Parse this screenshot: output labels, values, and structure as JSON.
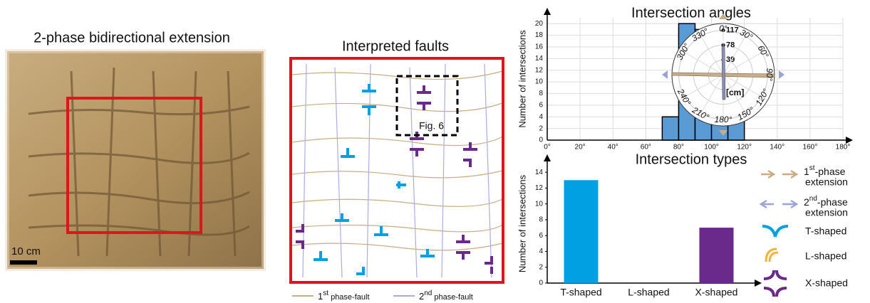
{
  "photo": {
    "title": "2-phase bidirectional extension",
    "scale": "10 cm"
  },
  "map": {
    "title": "Interpreted faults",
    "inset": "Fig. 6",
    "legend": [
      {
        "num": "1",
        "sup": "st",
        "text": " phase-fault"
      },
      {
        "num": "2",
        "sup": "nd",
        "text": " phase-fault"
      }
    ]
  },
  "rose": {
    "angles": [
      {
        "value": 0,
        "label": "0°"
      },
      {
        "value": 30,
        "label": "30°"
      },
      {
        "value": 60,
        "label": "60°"
      },
      {
        "value": 90,
        "label": "90°"
      },
      {
        "value": 120,
        "label": "120°"
      },
      {
        "value": 150,
        "label": "150°"
      },
      {
        "value": 180,
        "label": "180°"
      },
      {
        "value": 210,
        "label": "210°"
      },
      {
        "value": 240,
        "label": "240°"
      },
      {
        "value": 300,
        "label": "300°"
      },
      {
        "value": 330,
        "label": "330°"
      }
    ],
    "rlim": [
      0,
      135
    ],
    "rticks": [
      39,
      78,
      117
    ],
    "unit": "[cm]"
  },
  "legend": {
    "extension": [
      {
        "num": "1",
        "sup": "st",
        "text": "-phase",
        "text2": "extension"
      },
      {
        "num": "2",
        "sup": "nd",
        "text": "-phase",
        "text2": "extension"
      }
    ],
    "types": [
      "T-shaped",
      "L-shaped",
      "X-shaped"
    ]
  },
  "chart_data": [
    {
      "type": "histogram",
      "title": "Intersection angles",
      "ylabel": "Number of intersections",
      "bins": [
        0,
        10,
        20,
        30,
        40,
        50,
        60,
        70,
        80,
        90,
        100,
        110,
        120,
        130,
        140,
        150,
        160,
        170,
        180
      ],
      "counts": [
        0,
        0,
        0,
        0,
        0,
        0,
        0,
        4,
        20,
        19,
        10,
        4,
        0,
        0,
        0,
        0,
        0,
        0
      ],
      "color": "#5b9bd5",
      "xlim": [
        0,
        180
      ],
      "ylim": [
        0,
        21
      ],
      "xticks": [
        {
          "value": 0,
          "label": "0°"
        },
        {
          "value": 20,
          "label": "20°"
        },
        {
          "value": 40,
          "label": "40°"
        },
        {
          "value": 60,
          "label": "60°"
        },
        {
          "value": 80,
          "label": "80°"
        },
        {
          "value": 100,
          "label": "100°"
        },
        {
          "value": 120,
          "label": "120°"
        },
        {
          "value": 140,
          "label": "140°"
        },
        {
          "value": 160,
          "label": "160°"
        },
        {
          "value": 180,
          "label": "180°"
        }
      ],
      "yticks": [
        0,
        2,
        4,
        6,
        8,
        10,
        12,
        14,
        16,
        18,
        20
      ],
      "grid": true
    },
    {
      "type": "bar",
      "title": "Intersection types",
      "ylabel": "Number of intersections",
      "categories": [
        "T-shaped",
        "L-shaped",
        "X-shaped"
      ],
      "values": [
        13,
        0,
        7
      ],
      "colors": [
        "#00a0e3",
        "#f5b335",
        "#6a2a8c"
      ],
      "ylim": [
        0,
        15
      ],
      "yticks": [
        0,
        2,
        4,
        6,
        8,
        10,
        12,
        14
      ],
      "grid": false
    }
  ]
}
